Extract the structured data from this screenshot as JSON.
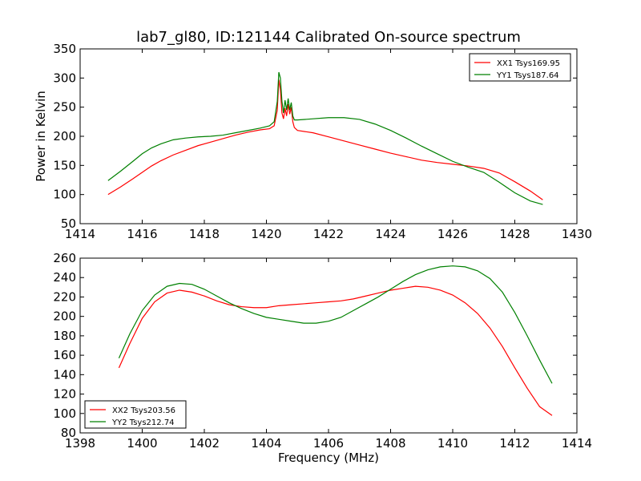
{
  "title": "lab7_gl80, ID:121144 Calibrated On-source spectrum",
  "chart_data": [
    {
      "type": "line",
      "xlabel": "",
      "ylabel": "Power in Kelvin",
      "xlim": [
        1414,
        1430
      ],
      "ylim": [
        50,
        350
      ],
      "xticks": [
        1414,
        1416,
        1418,
        1420,
        1422,
        1424,
        1426,
        1428,
        1430
      ],
      "yticks": [
        50,
        100,
        150,
        200,
        250,
        300,
        350
      ],
      "legend_position": "top-right",
      "series": [
        {
          "name": "XX1 Tsys169.95",
          "color": "#ff0000",
          "points": [
            [
              1414.9,
              100
            ],
            [
              1415.3,
              113
            ],
            [
              1415.7,
              127
            ],
            [
              1416.0,
              138
            ],
            [
              1416.3,
              149
            ],
            [
              1416.6,
              158
            ],
            [
              1417.0,
              168
            ],
            [
              1417.4,
              176
            ],
            [
              1417.8,
              184
            ],
            [
              1418.2,
              190
            ],
            [
              1418.6,
              196
            ],
            [
              1419.0,
              202
            ],
            [
              1419.4,
              207
            ],
            [
              1419.8,
              211
            ],
            [
              1420.1,
              213
            ],
            [
              1420.25,
              218
            ],
            [
              1420.35,
              245
            ],
            [
              1420.4,
              297
            ],
            [
              1420.45,
              280
            ],
            [
              1420.5,
              240
            ],
            [
              1420.55,
              230
            ],
            [
              1420.6,
              248
            ],
            [
              1420.65,
              235
            ],
            [
              1420.7,
              255
            ],
            [
              1420.75,
              238
            ],
            [
              1420.8,
              250
            ],
            [
              1420.85,
              225
            ],
            [
              1420.9,
              215
            ],
            [
              1421.0,
              210
            ],
            [
              1421.5,
              206
            ],
            [
              1422.0,
              199
            ],
            [
              1422.5,
              192
            ],
            [
              1423.0,
              185
            ],
            [
              1423.5,
              178
            ],
            [
              1424.0,
              171
            ],
            [
              1424.5,
              165
            ],
            [
              1425.0,
              159
            ],
            [
              1425.5,
              155
            ],
            [
              1426.0,
              152
            ],
            [
              1426.5,
              149
            ],
            [
              1427.0,
              145
            ],
            [
              1427.5,
              137
            ],
            [
              1428.0,
              122
            ],
            [
              1428.5,
              106
            ],
            [
              1428.9,
              91
            ]
          ]
        },
        {
          "name": "YY1 Tsys187.64",
          "color": "#008000",
          "points": [
            [
              1414.9,
              124
            ],
            [
              1415.3,
              140
            ],
            [
              1415.7,
              157
            ],
            [
              1416.0,
              170
            ],
            [
              1416.3,
              180
            ],
            [
              1416.6,
              187
            ],
            [
              1417.0,
              194
            ],
            [
              1417.4,
              197
            ],
            [
              1417.8,
              199
            ],
            [
              1418.2,
              200
            ],
            [
              1418.6,
              202
            ],
            [
              1419.0,
              206
            ],
            [
              1419.4,
              210
            ],
            [
              1419.8,
              214
            ],
            [
              1420.1,
              218
            ],
            [
              1420.25,
              225
            ],
            [
              1420.35,
              260
            ],
            [
              1420.4,
              310
            ],
            [
              1420.45,
              300
            ],
            [
              1420.5,
              260
            ],
            [
              1420.55,
              240
            ],
            [
              1420.6,
              262
            ],
            [
              1420.65,
              245
            ],
            [
              1420.7,
              265
            ],
            [
              1420.75,
              245
            ],
            [
              1420.8,
              258
            ],
            [
              1420.85,
              235
            ],
            [
              1420.9,
              228
            ],
            [
              1421.0,
              228
            ],
            [
              1421.5,
              230
            ],
            [
              1422.0,
              232
            ],
            [
              1422.5,
              232
            ],
            [
              1423.0,
              229
            ],
            [
              1423.5,
              221
            ],
            [
              1424.0,
              210
            ],
            [
              1424.5,
              197
            ],
            [
              1425.0,
              183
            ],
            [
              1425.5,
              170
            ],
            [
              1426.0,
              157
            ],
            [
              1426.5,
              147
            ],
            [
              1427.0,
              138
            ],
            [
              1427.5,
              121
            ],
            [
              1428.0,
              103
            ],
            [
              1428.5,
              89
            ],
            [
              1428.9,
              83
            ]
          ]
        }
      ]
    },
    {
      "type": "line",
      "xlabel": "Frequency (MHz)",
      "ylabel": "",
      "xlim": [
        1398,
        1414
      ],
      "ylim": [
        80,
        260
      ],
      "xticks": [
        1398,
        1400,
        1402,
        1404,
        1406,
        1408,
        1410,
        1412,
        1414
      ],
      "yticks": [
        80,
        100,
        120,
        140,
        160,
        180,
        200,
        220,
        240,
        260
      ],
      "legend_position": "bottom-left",
      "series": [
        {
          "name": "XX2 Tsys203.56",
          "color": "#ff0000",
          "points": [
            [
              1399.25,
              147
            ],
            [
              1399.6,
              172
            ],
            [
              1400.0,
              198
            ],
            [
              1400.4,
              215
            ],
            [
              1400.8,
              224
            ],
            [
              1401.2,
              227
            ],
            [
              1401.6,
              225
            ],
            [
              1402.0,
              221
            ],
            [
              1402.4,
              216
            ],
            [
              1402.8,
              212
            ],
            [
              1403.2,
              210
            ],
            [
              1403.6,
              209
            ],
            [
              1404.0,
              209
            ],
            [
              1404.4,
              211
            ],
            [
              1404.8,
              212
            ],
            [
              1405.2,
              213
            ],
            [
              1405.6,
              214
            ],
            [
              1406.0,
              215
            ],
            [
              1406.4,
              216
            ],
            [
              1406.8,
              218
            ],
            [
              1407.2,
              221
            ],
            [
              1407.6,
              224
            ],
            [
              1408.0,
              227
            ],
            [
              1408.4,
              229
            ],
            [
              1408.8,
              231
            ],
            [
              1409.2,
              230
            ],
            [
              1409.6,
              227
            ],
            [
              1410.0,
              222
            ],
            [
              1410.4,
              214
            ],
            [
              1410.8,
              203
            ],
            [
              1411.2,
              188
            ],
            [
              1411.6,
              169
            ],
            [
              1412.0,
              147
            ],
            [
              1412.4,
              126
            ],
            [
              1412.8,
              107
            ],
            [
              1413.2,
              98
            ]
          ]
        },
        {
          "name": "YY2 Tsys212.74",
          "color": "#008000",
          "points": [
            [
              1399.25,
              157
            ],
            [
              1399.6,
              182
            ],
            [
              1400.0,
              206
            ],
            [
              1400.4,
              222
            ],
            [
              1400.8,
              231
            ],
            [
              1401.2,
              234
            ],
            [
              1401.6,
              233
            ],
            [
              1402.0,
              228
            ],
            [
              1402.4,
              221
            ],
            [
              1402.8,
              214
            ],
            [
              1403.2,
              208
            ],
            [
              1403.6,
              203
            ],
            [
              1404.0,
              199
            ],
            [
              1404.4,
              197
            ],
            [
              1404.8,
              195
            ],
            [
              1405.2,
              193
            ],
            [
              1405.6,
              193
            ],
            [
              1406.0,
              195
            ],
            [
              1406.4,
              199
            ],
            [
              1406.8,
              206
            ],
            [
              1407.2,
              213
            ],
            [
              1407.6,
              220
            ],
            [
              1408.0,
              228
            ],
            [
              1408.4,
              236
            ],
            [
              1408.8,
              243
            ],
            [
              1409.2,
              248
            ],
            [
              1409.6,
              251
            ],
            [
              1410.0,
              252
            ],
            [
              1410.4,
              251
            ],
            [
              1410.8,
              247
            ],
            [
              1411.2,
              239
            ],
            [
              1411.6,
              225
            ],
            [
              1412.0,
              204
            ],
            [
              1412.4,
              180
            ],
            [
              1412.8,
              155
            ],
            [
              1413.2,
              131
            ]
          ]
        }
      ]
    }
  ]
}
